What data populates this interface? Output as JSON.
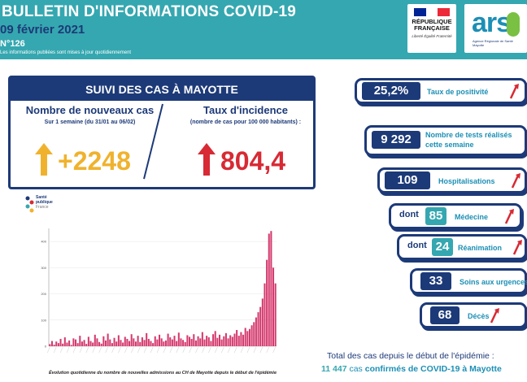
{
  "header": {
    "title": "BULLETIN D'INFORMATIONS COVID-19",
    "date": "09 février 2021",
    "number": "N°126",
    "note": "Les informations publiées sont mises à jour quotidiennement"
  },
  "logos": {
    "republique": {
      "line1": "RÉPUBLIQUE",
      "line2": "FRANÇAISE",
      "motto": "Liberté Égalité Fraternité"
    },
    "ars": {
      "name": "ars",
      "sub": "Agence Régionale de Santé Mayotte"
    },
    "spf": {
      "line1": "Santé",
      "line2": "publique",
      "line3": "France"
    }
  },
  "suivi": {
    "heading": "SUIVI DES CAS À MAYOTTE",
    "left_title": "Nombre de nouveaux cas",
    "left_sub": "Sur 1 semaine (du 31/01 au 06/02)",
    "left_value": "+2248",
    "right_title": "Taux d'incidence",
    "right_sub": "(nombre de cas pour 100 000 habitants) :",
    "right_value": "804,4"
  },
  "indicators": {
    "positivite": {
      "value": "25,2%",
      "label": "Taux de positivité"
    },
    "tests": {
      "value": "9 292",
      "label1": "Nombre de tests réalisés",
      "label2": "cette semaine"
    },
    "hosp": {
      "value": "109",
      "label": "Hospitalisations"
    },
    "medecine": {
      "prefix": "dont",
      "value": "85",
      "label": "Médecine"
    },
    "reanimation": {
      "prefix": "dont",
      "value": "24",
      "label": "Réanimation"
    },
    "urgences": {
      "value": "33",
      "label": "Soins aux urgences"
    },
    "deces": {
      "value": "68",
      "label": "Décès"
    }
  },
  "totals": {
    "line1": "Total des cas depuis le début de l'épidémie :",
    "count": "11 447",
    "line2_a": "cas",
    "line2_b": "confirmés de COVID-19 à Mayotte"
  },
  "chart_caption": "Évolution quotidienne du nombre de nouvelles admissions au CH de Mayotte depuis le début de l'épidémie",
  "colors": {
    "navy": "#1d3a78",
    "teal": "#35a7b0",
    "orange": "#f0b22d",
    "red": "#d72a34",
    "bar": "#d43a6e"
  },
  "chart_data": {
    "type": "bar",
    "ylim": [
      0,
      450
    ],
    "yticks": [
      0,
      100,
      200,
      300,
      400
    ],
    "values": [
      8,
      20,
      6,
      18,
      12,
      28,
      10,
      34,
      14,
      22,
      5,
      30,
      26,
      12,
      40,
      18,
      24,
      9,
      36,
      20,
      14,
      44,
      30,
      16,
      10,
      38,
      22,
      48,
      26,
      12,
      32,
      18,
      42,
      24,
      14,
      36,
      28,
      20,
      46,
      30,
      18,
      40,
      16,
      34,
      24,
      50,
      28,
      20,
      12,
      38,
      26,
      44,
      30,
      18,
      22,
      48,
      34,
      26,
      40,
      20,
      52,
      30,
      24,
      16,
      42,
      36,
      28,
      46,
      22,
      38,
      30,
      54,
      26,
      40,
      34,
      20,
      46,
      58,
      32,
      44,
      26,
      38,
      50,
      30,
      42,
      36,
      48,
      62,
      40,
      54,
      44,
      70,
      58,
      66,
      80,
      92,
      110,
      130,
      150,
      182,
      240,
      330,
      430,
      440,
      300,
      240
    ]
  }
}
